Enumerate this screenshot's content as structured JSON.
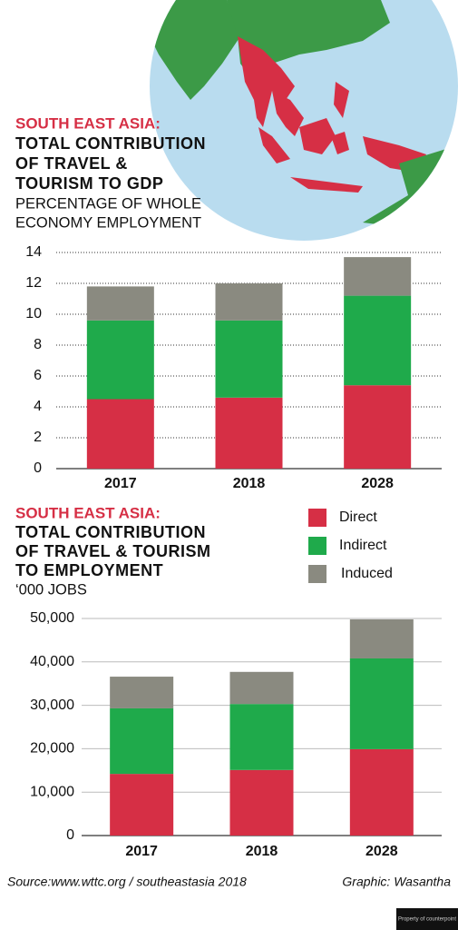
{
  "chart_data": [
    {
      "type": "bar",
      "stacked": true,
      "grid": true,
      "kicker": "SOUTH EAST ASIA:",
      "title": [
        "TOTAL CONTRIBUTION",
        "OF TRAVEL &",
        "TOURISM TO GDP"
      ],
      "subtitle": [
        "PERCENTAGE OF WHOLE",
        "ECONOMY EMPLOYMENT"
      ],
      "categories": [
        "2017",
        "2018",
        "2028"
      ],
      "series": [
        {
          "color": "#d62f45",
          "values": [
            4.5,
            4.6,
            5.4
          ]
        },
        {
          "color": "#1faa4b",
          "values": [
            5.1,
            5.0,
            5.8
          ]
        },
        {
          "color": "#8a8a80",
          "values": [
            2.2,
            2.4,
            2.5
          ]
        }
      ],
      "ylim": [
        0,
        14
      ],
      "yticks": [
        0,
        2,
        4,
        6,
        8,
        10,
        12,
        14
      ]
    },
    {
      "type": "bar",
      "stacked": true,
      "grid": true,
      "legend": true,
      "kicker": "SOUTH EAST ASIA:",
      "title": [
        "TOTAL CONTRIBUTION",
        "OF TRAVEL & TOURISM",
        "TO EMPLOYMENT"
      ],
      "subtitle": [
        "‘000 JOBS"
      ],
      "categories": [
        "2017",
        "2018",
        "2028"
      ],
      "series": [
        {
          "name": "Direct",
          "color": "#d62f45",
          "values": [
            14200,
            15100,
            19900
          ]
        },
        {
          "name": "Indirect",
          "color": "#1faa4b",
          "values": [
            15100,
            15200,
            20900
          ]
        },
        {
          "name": "Induced",
          "color": "#8a8a80",
          "values": [
            7300,
            7400,
            9000
          ]
        }
      ],
      "ylim": [
        0,
        50000
      ],
      "yticks": [
        0,
        {
          "value": 10000,
          "label": "10,000"
        },
        {
          "value": 20000,
          "label": "20,000"
        },
        {
          "value": 30000,
          "label": "30,000"
        },
        {
          "value": 40000,
          "label": "40,000"
        },
        {
          "value": 50000,
          "label": "50,000"
        }
      ]
    }
  ],
  "footer": {
    "source": "Source:www.wttc.org / southeastasia 2018",
    "credit": "Graphic: Wasantha",
    "watermark": "Property of counterpoint"
  }
}
